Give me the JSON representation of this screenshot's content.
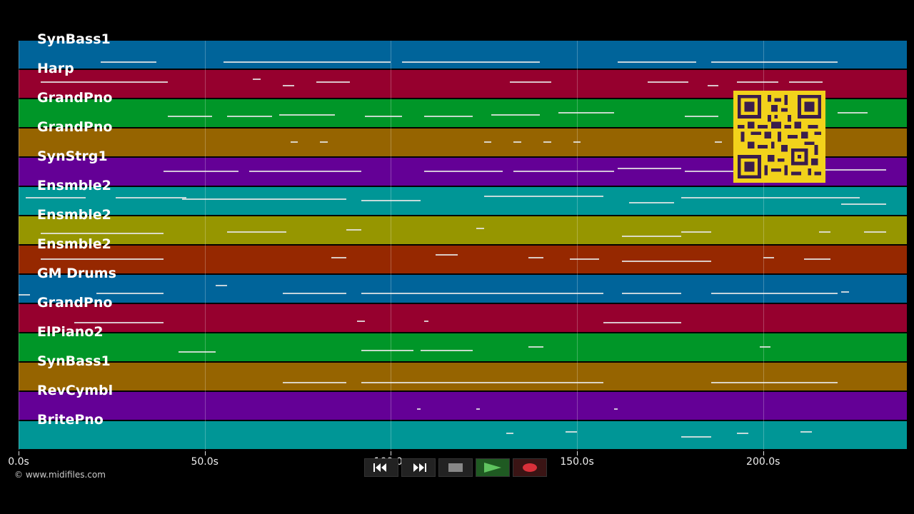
{
  "tracks": [
    {
      "name": "SynBass1",
      "color": "#00649a"
    },
    {
      "name": "Harp",
      "color": "#96002e"
    },
    {
      "name": "GrandPno",
      "color": "#009628"
    },
    {
      "name": "GrandPno",
      "color": "#966400"
    },
    {
      "name": "SynStrg1",
      "color": "#640096"
    },
    {
      "name": "Ensmble2",
      "color": "#009696"
    },
    {
      "name": "Ensmble2",
      "color": "#969600"
    },
    {
      "name": "Ensmble2",
      "color": "#962800"
    },
    {
      "name": "GM Drums",
      "color": "#00649a"
    },
    {
      "name": "GrandPno",
      "color": "#96002e"
    },
    {
      "name": "ElPiano2",
      "color": "#009628"
    },
    {
      "name": "SynBass1",
      "color": "#966400"
    },
    {
      "name": "RevCymbl",
      "color": "#640096"
    },
    {
      "name": "BritePno",
      "color": "#009696"
    }
  ],
  "time_axis": {
    "labels": [
      "0.0s",
      "50.0s",
      "100.0s",
      "150.0s",
      "200.0s"
    ],
    "values": [
      0,
      50,
      100,
      150,
      200
    ],
    "max_seconds": 238.6
  },
  "copyright": "© www.midifiles.com",
  "transport": {
    "buttons": [
      "rewind",
      "fast-forward",
      "stop",
      "play",
      "record"
    ]
  },
  "notes": [
    [
      [
        22,
        37,
        0.7
      ],
      [
        55,
        100,
        0.7
      ],
      [
        103,
        140,
        0.7
      ],
      [
        161,
        182,
        0.7
      ],
      [
        186,
        220,
        0.7
      ]
    ],
    [
      [
        6,
        40,
        0.4
      ],
      [
        63,
        65,
        0.3
      ],
      [
        71,
        74,
        0.5
      ],
      [
        80,
        89,
        0.4
      ],
      [
        132,
        143,
        0.4
      ],
      [
        169,
        180,
        0.4
      ],
      [
        185,
        188,
        0.5
      ],
      [
        193,
        204,
        0.4
      ],
      [
        207,
        216,
        0.4
      ]
    ],
    [
      [
        40,
        52,
        0.55
      ],
      [
        56,
        68,
        0.55
      ],
      [
        70,
        85,
        0.5
      ],
      [
        93,
        103,
        0.55
      ],
      [
        109,
        122,
        0.55
      ],
      [
        127,
        140,
        0.5
      ],
      [
        145,
        160,
        0.45
      ],
      [
        179,
        188,
        0.55
      ],
      [
        220,
        228,
        0.45
      ]
    ],
    [
      [
        73,
        75,
        0.45
      ],
      [
        81,
        83,
        0.45
      ],
      [
        125,
        127,
        0.45
      ],
      [
        133,
        135,
        0.45
      ],
      [
        141,
        143,
        0.45
      ],
      [
        149,
        151,
        0.45
      ],
      [
        187,
        189,
        0.45
      ],
      [
        210,
        213,
        0.45
      ]
    ],
    [
      [
        39,
        59,
        0.45
      ],
      [
        62,
        92,
        0.45
      ],
      [
        109,
        130,
        0.45
      ],
      [
        133,
        160,
        0.45
      ],
      [
        161,
        178,
        0.35
      ],
      [
        179,
        193,
        0.45
      ],
      [
        208,
        233,
        0.4
      ]
    ],
    [
      [
        2,
        18,
        0.35
      ],
      [
        26,
        45,
        0.35
      ],
      [
        44,
        88,
        0.4
      ],
      [
        92,
        108,
        0.45
      ],
      [
        125,
        157,
        0.3
      ],
      [
        164,
        176,
        0.5
      ],
      [
        178,
        226,
        0.35
      ],
      [
        221,
        233,
        0.55
      ]
    ],
    [
      [
        6,
        39,
        0.55
      ],
      [
        56,
        72,
        0.5
      ],
      [
        88,
        92,
        0.45
      ],
      [
        123,
        125,
        0.4
      ],
      [
        162,
        178,
        0.65
      ],
      [
        178,
        186,
        0.5
      ],
      [
        215,
        218,
        0.5
      ],
      [
        227,
        233,
        0.5
      ]
    ],
    [
      [
        6,
        39,
        0.45
      ],
      [
        84,
        88,
        0.4
      ],
      [
        112,
        118,
        0.3
      ],
      [
        137,
        141,
        0.4
      ],
      [
        148,
        156,
        0.45
      ],
      [
        162,
        178,
        0.5
      ],
      [
        178,
        186,
        0.5
      ],
      [
        200,
        203,
        0.4
      ],
      [
        211,
        218,
        0.45
      ]
    ],
    [
      [
        0,
        3,
        0.65
      ],
      [
        21,
        39,
        0.6
      ],
      [
        53,
        56,
        0.35
      ],
      [
        71,
        88,
        0.6
      ],
      [
        92,
        157,
        0.6
      ],
      [
        162,
        178,
        0.6
      ],
      [
        186,
        220,
        0.6
      ],
      [
        221,
        223,
        0.55
      ]
    ],
    [
      [
        15,
        39,
        0.6
      ],
      [
        91,
        93,
        0.55
      ],
      [
        109,
        110,
        0.55
      ],
      [
        157,
        178,
        0.6
      ]
    ],
    [
      [
        43,
        53,
        0.6
      ],
      [
        92,
        106,
        0.55
      ],
      [
        108,
        122,
        0.55
      ],
      [
        137,
        141,
        0.45
      ],
      [
        199,
        202,
        0.45
      ]
    ],
    [
      [
        71,
        88,
        0.65
      ],
      [
        92,
        157,
        0.65
      ],
      [
        186,
        220,
        0.65
      ]
    ],
    [
      [
        107,
        108,
        0.55
      ],
      [
        123,
        124,
        0.55
      ],
      [
        160,
        161,
        0.55
      ]
    ],
    [
      [
        131,
        133,
        0.4
      ],
      [
        147,
        150,
        0.35
      ],
      [
        178,
        186,
        0.5
      ],
      [
        193,
        196,
        0.4
      ],
      [
        210,
        213,
        0.35
      ]
    ]
  ]
}
